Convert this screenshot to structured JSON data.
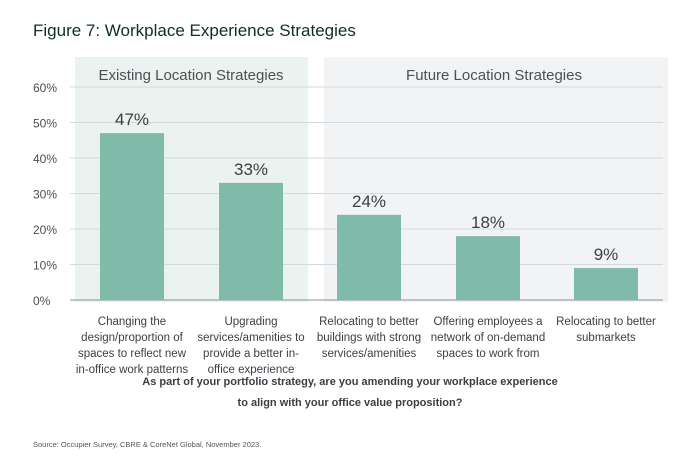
{
  "chart_data": {
    "type": "bar",
    "title": "Figure 7: Workplace Experience Strategies",
    "groups": [
      {
        "label": "Existing Location Strategies",
        "categories": [
          0,
          1
        ]
      },
      {
        "label": "Future Location Strategies",
        "categories": [
          2,
          3,
          4
        ]
      }
    ],
    "categories": [
      [
        "Changing the",
        "design/proportion of",
        "spaces to reflect new",
        "in-office work patterns"
      ],
      [
        "Upgrading",
        "services/amenities to",
        "provide a better in-",
        "office experience"
      ],
      [
        "Relocating to better",
        "buildings with strong",
        "services/amenities"
      ],
      [
        "Offering employees a",
        "network of on-demand",
        "spaces to work from"
      ],
      [
        "Relocating to better",
        "submarkets"
      ]
    ],
    "values": [
      47,
      33,
      24,
      18,
      9
    ],
    "data_labels": [
      "47%",
      "33%",
      "24%",
      "18%",
      "9%"
    ],
    "yticks": [
      0,
      10,
      20,
      30,
      40,
      50,
      60
    ],
    "ytick_labels": [
      "0%",
      "10%",
      "20%",
      "30%",
      "40%",
      "50%",
      "60%"
    ],
    "ylim": [
      0,
      60
    ],
    "grid": true,
    "xlabel": [
      "As part of your portfolio strategy, are you amending your workplace experience",
      "to align with your office value proposition?"
    ],
    "ylabel": "",
    "source": "Source: Occupier Survey, CBRE & CoreNet Global, November 2023.",
    "colors": {
      "bar": "#80bba9",
      "existing_bg": "#ebf3f0",
      "future_bg": "#f2f3f4",
      "title": "#0d2f2a",
      "text": "#3a3f44"
    }
  }
}
